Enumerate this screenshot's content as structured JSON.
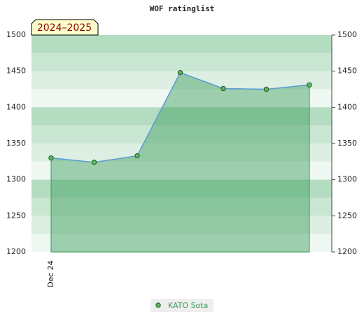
{
  "chart_data": {
    "type": "line",
    "title": "WOF ratinglist",
    "annotation": "2024–2025",
    "categories": [
      "Dec 24",
      null,
      null,
      null,
      null,
      null,
      null
    ],
    "series": [
      {
        "name": "KATO Sota",
        "color": "#3a9b5a",
        "values": [
          1330,
          1324,
          1333,
          1448,
          1426,
          1425,
          1431
        ]
      }
    ],
    "ylim": [
      1200,
      1500
    ],
    "yticks": [
      1200,
      1250,
      1300,
      1350,
      1400,
      1450,
      1500
    ]
  }
}
